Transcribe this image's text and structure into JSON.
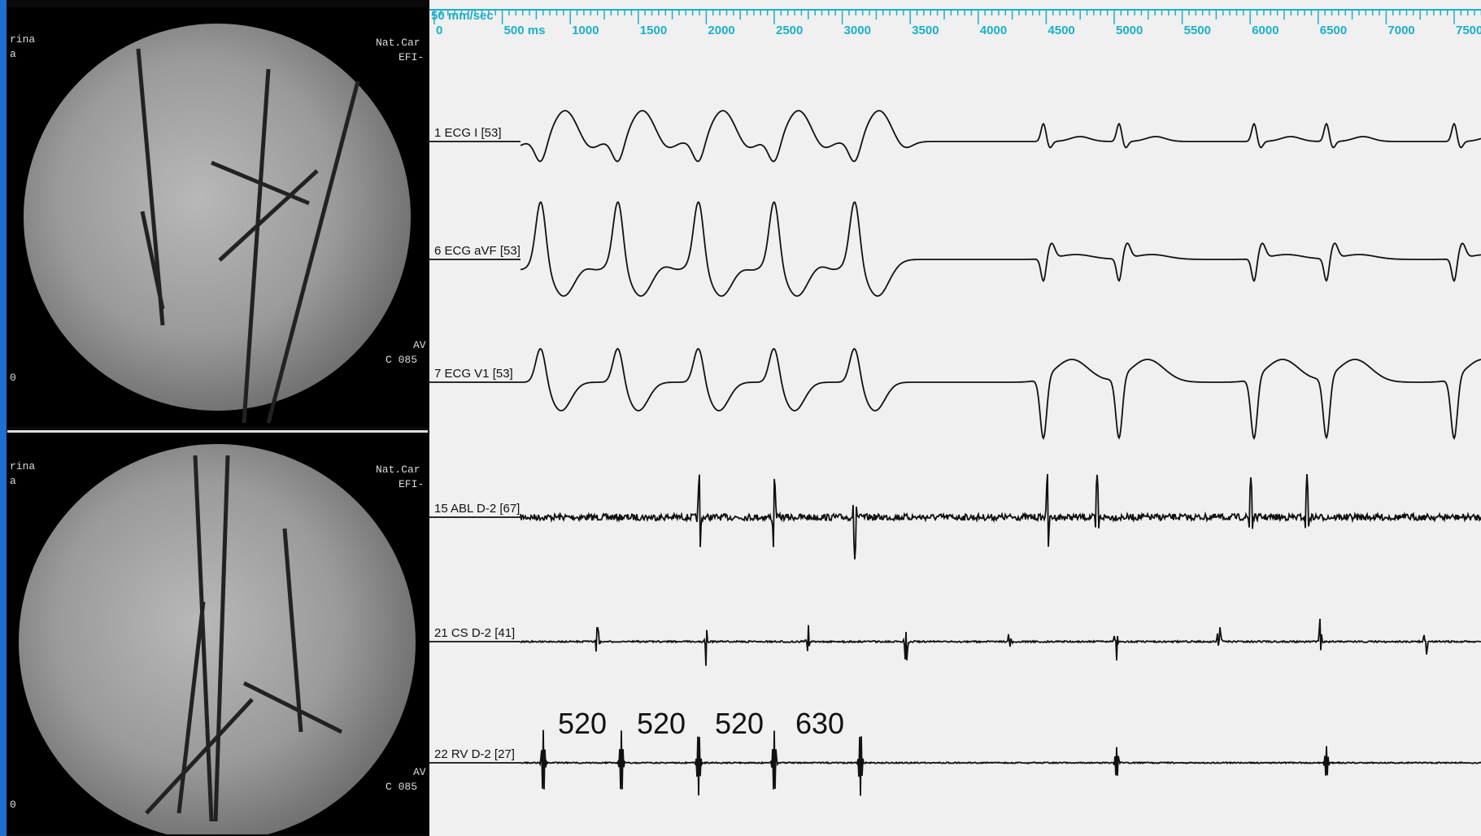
{
  "fluoroscopy": [
    {
      "top_left": "rina",
      "left": "a",
      "top_right": "Nat.Car",
      "right": "EFI-",
      "bottom_right_1": "AV",
      "bottom_right_2": "C 085",
      "bottom_left": "0"
    },
    {
      "top_left": "rina",
      "left": "a",
      "top_right": "Nat.Car",
      "right": "EFI-",
      "bottom_right_1": "AV",
      "bottom_right_2": "C 085",
      "bottom_left": "0"
    }
  ],
  "recording": {
    "speed": "50 mm/sec",
    "ruler": [
      "0",
      "500 ms",
      "1000",
      "1500",
      "2000",
      "2500",
      "3000",
      "3500",
      "4000",
      "4500",
      "5000",
      "5500",
      "6000",
      "6500",
      "7000",
      "7500"
    ],
    "channels": [
      "1  ECG I [53]",
      "6  ECG aVF [53]",
      "7  ECG V1 [53]",
      "15  ABL D-2 [67]",
      "21  CS D-2 [41]",
      "22  RV D-2 [27]"
    ],
    "intervals": [
      "520",
      "520",
      "520",
      "630"
    ]
  }
}
